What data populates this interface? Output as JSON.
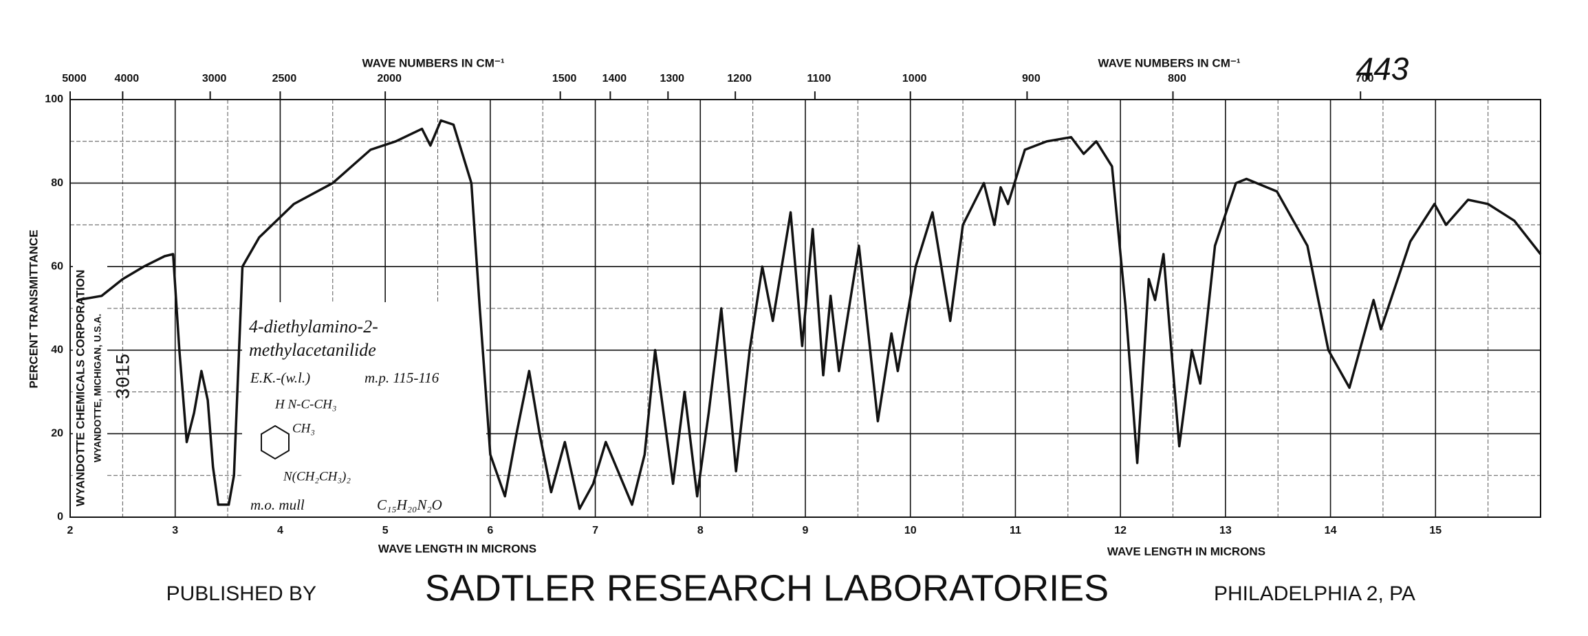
{
  "chart_data": {
    "type": "line",
    "page_number": "443",
    "top_axis_label_left": "WAVE NUMBERS IN CM⁻¹",
    "top_axis_label_right": "WAVE NUMBERS IN CM⁻¹",
    "xlabel_left": "WAVE LENGTH IN MICRONS",
    "xlabel_right": "WAVE LENGTH IN MICRONS",
    "ylabel": "PERCENT TRANSMITTANCE",
    "footer": {
      "prefix": "PUBLISHED BY",
      "name": "SADTLER RESEARCH LABORATORIES",
      "place": "PHILADELPHIA 2, PA"
    },
    "stamp": {
      "company": "WYANDOTTE CHEMICALS CORPORATION",
      "address": "WYANDOTTE, MICHIGAN, U.S.A.",
      "number": "3015"
    },
    "annotation": {
      "name_line1": "4-diethylamino-2-",
      "name_line2": "methylacetanilide",
      "source": "E.K.-(w.l.)",
      "melting_point": "m.p. 115-116",
      "structure_amide": "H N-C-CH₃",
      "structure_methyl": "CH₃",
      "structure_amine": "N(CH₂CH₃)₂",
      "medium": "m.o. mull",
      "formula": "C₁₅H₂₀N₂O"
    },
    "xlim": [
      2,
      16
    ],
    "ylim": [
      0,
      100
    ],
    "xticks": [
      2,
      3,
      4,
      5,
      6,
      7,
      8,
      9,
      10,
      11,
      12,
      13,
      14,
      15
    ],
    "xticks_minor": [
      2.5,
      3.5,
      4.5,
      5.5,
      6.5,
      7.5,
      8.5,
      9.5,
      10.5,
      11.5,
      12.5,
      13.5,
      14.5,
      15.5
    ],
    "yticks": [
      0,
      20,
      40,
      60,
      80,
      100
    ],
    "yticks_minor": [
      10,
      30,
      50,
      70,
      90
    ],
    "x2scale": "reciprocal",
    "x2ticks": [
      5000,
      4000,
      3000,
      2500,
      2000,
      1500,
      1400,
      1300,
      1200,
      1100,
      1000,
      900,
      800,
      700
    ],
    "grid": true,
    "color": "#111111",
    "x": [
      2.07,
      2.3,
      2.5,
      2.7,
      2.9,
      2.98,
      3.04,
      3.11,
      3.18,
      3.25,
      3.31,
      3.36,
      3.41,
      3.51,
      3.56,
      3.64,
      3.8,
      4.13,
      4.5,
      4.86,
      5.1,
      5.35,
      5.43,
      5.53,
      5.65,
      5.82,
      5.9,
      6.0,
      6.14,
      6.25,
      6.37,
      6.47,
      6.58,
      6.71,
      6.85,
      6.98,
      7.1,
      7.2,
      7.35,
      7.47,
      7.57,
      7.65,
      7.74,
      7.85,
      7.97,
      8.08,
      8.2,
      8.34,
      8.47,
      8.59,
      8.69,
      8.86,
      8.97,
      9.07,
      9.17,
      9.24,
      9.32,
      9.51,
      9.69,
      9.82,
      9.88,
      10.05,
      10.21,
      10.38,
      10.5,
      10.7,
      10.8,
      10.86,
      10.93,
      11.09,
      11.3,
      11.53,
      11.65,
      11.77,
      11.92,
      12.05,
      12.16,
      12.27,
      12.33,
      12.41,
      12.56,
      12.68,
      12.76,
      12.9,
      13.1,
      13.2,
      13.49,
      13.78,
      13.98,
      14.18,
      14.41,
      14.48,
      14.76,
      14.99,
      15.1,
      15.31,
      15.5,
      15.75,
      16.0
    ],
    "values": [
      52,
      53,
      57,
      60,
      62.5,
      63,
      40,
      18,
      25,
      35,
      28,
      12,
      3,
      3,
      10,
      60,
      67,
      75,
      80,
      88,
      90,
      93,
      89,
      95,
      94,
      80,
      50,
      15,
      5,
      20,
      35,
      20,
      6,
      18,
      2,
      8,
      18,
      12,
      3,
      15,
      40,
      25,
      8,
      30,
      5,
      25,
      50,
      11,
      40,
      60,
      47,
      73,
      41,
      69,
      34,
      53,
      35,
      65,
      23,
      44,
      35,
      60,
      73,
      47,
      70,
      80,
      70,
      79,
      75,
      88,
      90,
      91,
      87,
      90,
      84,
      50,
      13,
      57,
      52,
      63,
      17,
      40,
      32,
      65,
      80,
      81,
      78,
      65,
      40,
      31,
      52,
      45,
      66,
      75,
      70,
      76,
      75,
      71,
      63
    ]
  }
}
